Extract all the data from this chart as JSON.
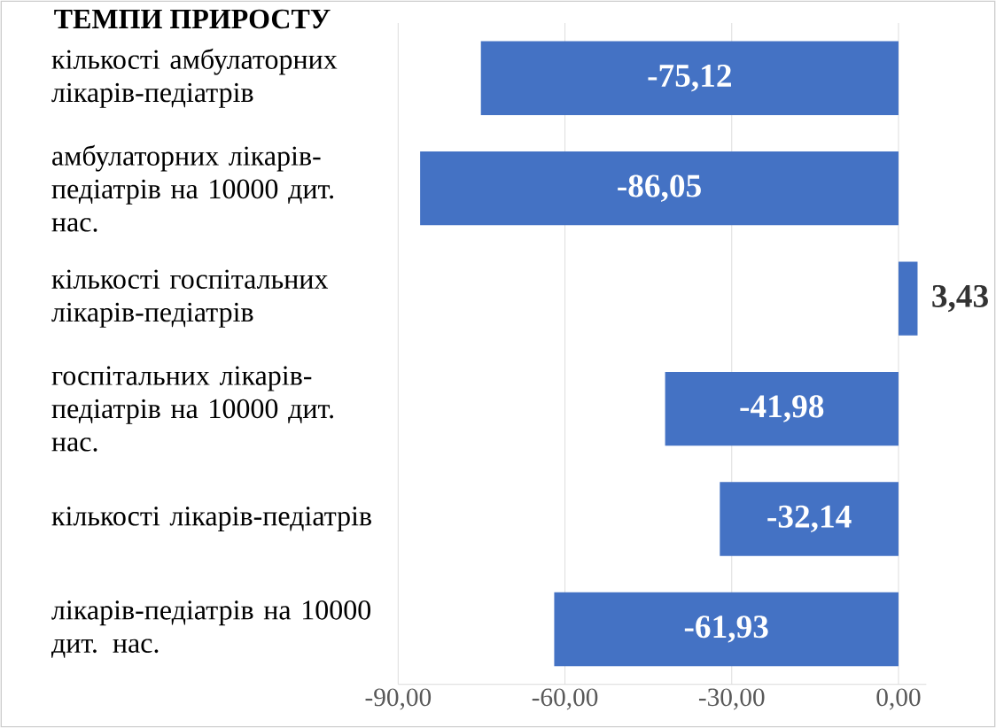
{
  "chart_data": {
    "type": "bar",
    "orientation": "horizontal",
    "title": "ТЕМПИ ПРИРОСТУ",
    "categories": [
      "кількості амбулаторних лікарів-педіатрів",
      "амбулаторних лікарів-педіатрів на 10000 дит. нас.",
      "кількості госпітальних лікарів-педіатрів",
      "госпітальних лікарів-педіатрів на 10000 дит. нас.",
      "кількості  лікарів-педіатрів",
      "лікарів-педіатрів на 10000 дит. нас."
    ],
    "values": [
      -75.12,
      -86.05,
      3.43,
      -41.98,
      -32.14,
      -61.93
    ],
    "value_labels": [
      "-75,12",
      "-86,05",
      "3,43",
      "-41,98",
      "-32,14",
      "-61,93"
    ],
    "color": "#4472c4",
    "xlim": [
      -90,
      5
    ],
    "xticks": [
      {
        "value": -90,
        "label": "-90,00"
      },
      {
        "value": -60,
        "label": "-60,00"
      },
      {
        "value": -30,
        "label": "-30,00"
      },
      {
        "value": 0,
        "label": "0,00"
      }
    ],
    "grid": "x"
  }
}
